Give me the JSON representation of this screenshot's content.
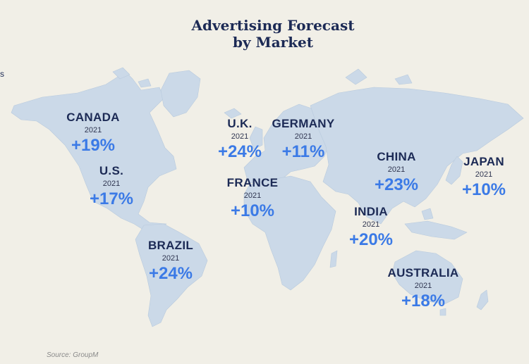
{
  "title_line1": "Advertising Forecast",
  "title_line2": "by Market",
  "markets": [
    {
      "name": "CANADA",
      "year": "2021",
      "value": "+19%"
    },
    {
      "name": "U.S.",
      "year": "2021",
      "value": "+17%"
    },
    {
      "name": "BRAZIL",
      "year": "2021",
      "value": "+24%"
    },
    {
      "name": "U.K.",
      "year": "2021",
      "value": "+24%"
    },
    {
      "name": "GERMANY",
      "year": "2021",
      "value": "+11%"
    },
    {
      "name": "FRANCE",
      "year": "2021",
      "value": "+10%"
    },
    {
      "name": "CHINA",
      "year": "2021",
      "value": "+23%"
    },
    {
      "name": "JAPAN",
      "year": "2021",
      "value": "+10%"
    },
    {
      "name": "INDIA",
      "year": "2021",
      "value": "+20%"
    },
    {
      "name": "AUSTRALIA",
      "year": "2021",
      "value": "+18%"
    }
  ],
  "source": "Source: GroupM",
  "edge_text": "s",
  "colors": {
    "background": "#f1efe7",
    "land": "#cbd9e8",
    "title": "#1c2a55",
    "value": "#3b7ae6"
  }
}
